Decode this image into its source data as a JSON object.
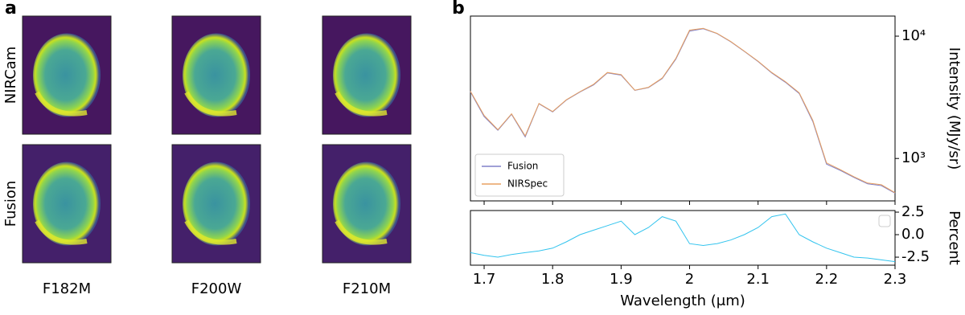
{
  "panel_labels": [
    "a",
    "b"
  ],
  "images": {
    "row_labels": [
      "NIRCam",
      "Fusion"
    ],
    "column_labels": [
      "F182M",
      "F200W",
      "F210M"
    ]
  },
  "chart_data": [
    {
      "type": "line",
      "ylabel": "Intensity (MJy/sr)",
      "ylog": true,
      "xlim": [
        1.68,
        2.3
      ],
      "ylim": [
        450,
        14600
      ],
      "yticks": [
        {
          "value": 1000,
          "label": "10³"
        },
        {
          "value": 10000,
          "label": "10⁴"
        }
      ],
      "legend": "lower left",
      "x": [
        1.68,
        1.7,
        1.72,
        1.74,
        1.76,
        1.78,
        1.8,
        1.82,
        1.84,
        1.86,
        1.88,
        1.9,
        1.92,
        1.94,
        1.96,
        1.98,
        2.0,
        2.02,
        2.04,
        2.06,
        2.08,
        2.1,
        2.12,
        2.14,
        2.16,
        2.18,
        2.2,
        2.22,
        2.24,
        2.26,
        2.28,
        2.3
      ],
      "series": [
        {
          "name": "Fusion",
          "color": "#8080c8",
          "values": [
            3500,
            2200,
            1700,
            2300,
            1500,
            2800,
            2400,
            3000,
            3500,
            4000,
            5000,
            4800,
            3600,
            3800,
            4500,
            6500,
            11000,
            11500,
            10500,
            9000,
            7500,
            6200,
            5000,
            4200,
            3400,
            2000,
            900,
            800,
            700,
            620,
            600,
            520
          ]
        },
        {
          "name": "NIRSpec",
          "color": "#e8a060",
          "values": [
            3550,
            2250,
            1720,
            2320,
            1530,
            2820,
            2420,
            3020,
            3520,
            4050,
            5050,
            4850,
            3620,
            3820,
            4550,
            6600,
            11200,
            11600,
            10550,
            9050,
            7550,
            6250,
            5050,
            4250,
            3450,
            2050,
            920,
            810,
            710,
            630,
            610,
            525
          ]
        }
      ]
    },
    {
      "type": "line",
      "xlabel": "Wavelength (μm)",
      "ylabel": "Percent",
      "xlim": [
        1.68,
        2.3
      ],
      "ylim": [
        -3.39,
        2.68
      ],
      "xticks": [
        1.7,
        1.8,
        1.9,
        2.0,
        2.1,
        2.2,
        2.3
      ],
      "yticks": [
        2.5,
        {
          "value": 0,
          "label": "0.0"
        },
        -2.5
      ],
      "legend": "upper right",
      "x": [
        1.68,
        1.7,
        1.72,
        1.74,
        1.76,
        1.78,
        1.8,
        1.82,
        1.84,
        1.86,
        1.88,
        1.9,
        1.92,
        1.94,
        1.96,
        1.98,
        2.0,
        2.02,
        2.04,
        2.06,
        2.08,
        2.1,
        2.12,
        2.14,
        2.16,
        2.18,
        2.2,
        2.22,
        2.24,
        2.26,
        2.28,
        2.3
      ],
      "series": [
        {
          "color": "#33c4ee",
          "values": [
            -2,
            -2.3,
            -2.5,
            -2.2,
            -2,
            -1.8,
            -1.5,
            -0.8,
            0,
            0.5,
            1,
            1.5,
            0,
            0.8,
            2,
            1.5,
            -1,
            -1.2,
            -1,
            -0.6,
            0,
            0.8,
            2,
            2.3,
            0,
            -0.8,
            -1.5,
            -2,
            -2.5,
            -2.6,
            -2.8,
            -3
          ]
        }
      ]
    }
  ]
}
